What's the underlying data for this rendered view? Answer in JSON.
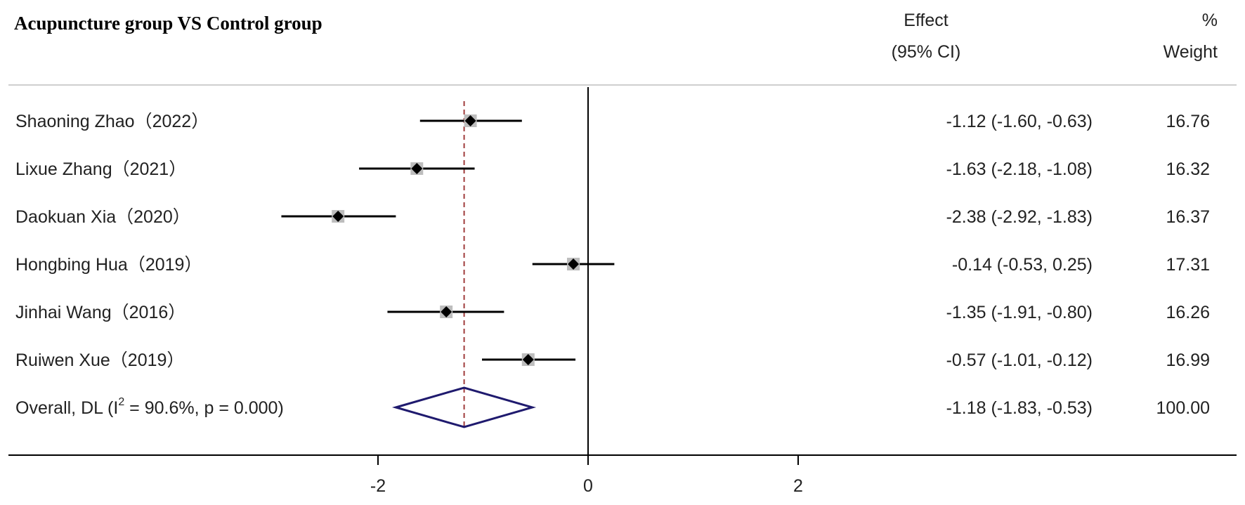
{
  "chart_data": {
    "type": "forest",
    "title": "Acupuncture group VS Control group",
    "effect_header": [
      "Effect",
      "(95% CI)"
    ],
    "weight_header": [
      "%",
      "Weight"
    ],
    "x_ticks": [
      -2,
      0,
      2
    ],
    "null_line": 0,
    "xlim": [
      -3.6,
      3.0
    ],
    "studies": [
      {
        "label": "Shaoning Zhao（2022）",
        "effect": -1.12,
        "ci_low": -1.6,
        "ci_high": -0.63,
        "effect_text": "-1.12 (-1.60, -0.63)",
        "weight": 16.76,
        "weight_text": "16.76"
      },
      {
        "label": "Lixue Zhang（2021）",
        "effect": -1.63,
        "ci_low": -2.18,
        "ci_high": -1.08,
        "effect_text": "-1.63 (-2.18, -1.08)",
        "weight": 16.32,
        "weight_text": "16.32"
      },
      {
        "label": "Daokuan Xia（2020）",
        "effect": -2.38,
        "ci_low": -2.92,
        "ci_high": -1.83,
        "effect_text": "-2.38 (-2.92, -1.83)",
        "weight": 16.37,
        "weight_text": "16.37"
      },
      {
        "label": "Hongbing Hua（2019）",
        "effect": -0.14,
        "ci_low": -0.53,
        "ci_high": 0.25,
        "effect_text": "-0.14 (-0.53, 0.25)",
        "weight": 17.31,
        "weight_text": "17.31"
      },
      {
        "label": "Jinhai Wang（2016）",
        "effect": -1.35,
        "ci_low": -1.91,
        "ci_high": -0.8,
        "effect_text": "-1.35 (-1.91, -0.80)",
        "weight": 16.26,
        "weight_text": "16.26"
      },
      {
        "label": "Ruiwen Xue（2019）",
        "effect": -0.57,
        "ci_low": -1.01,
        "ci_high": -0.12,
        "effect_text": "-0.57 (-1.01, -0.12)",
        "weight": 16.99,
        "weight_text": "16.99"
      }
    ],
    "overall": {
      "label_prefix": "Overall, DL (I",
      "label_sup": "2",
      "label_suffix": " = 90.6%, p = 0.000)",
      "effect": -1.18,
      "ci_low": -1.83,
      "ci_high": -0.53,
      "effect_text": "-1.18 (-1.83, -0.53)",
      "weight_text": "100.00"
    },
    "colors": {
      "ci_line": "#000000",
      "point": "#000000",
      "weight_box": "#bdbdbd",
      "overall_diamond": "#1f1a6e",
      "overall_line": "#a03c3c"
    }
  }
}
